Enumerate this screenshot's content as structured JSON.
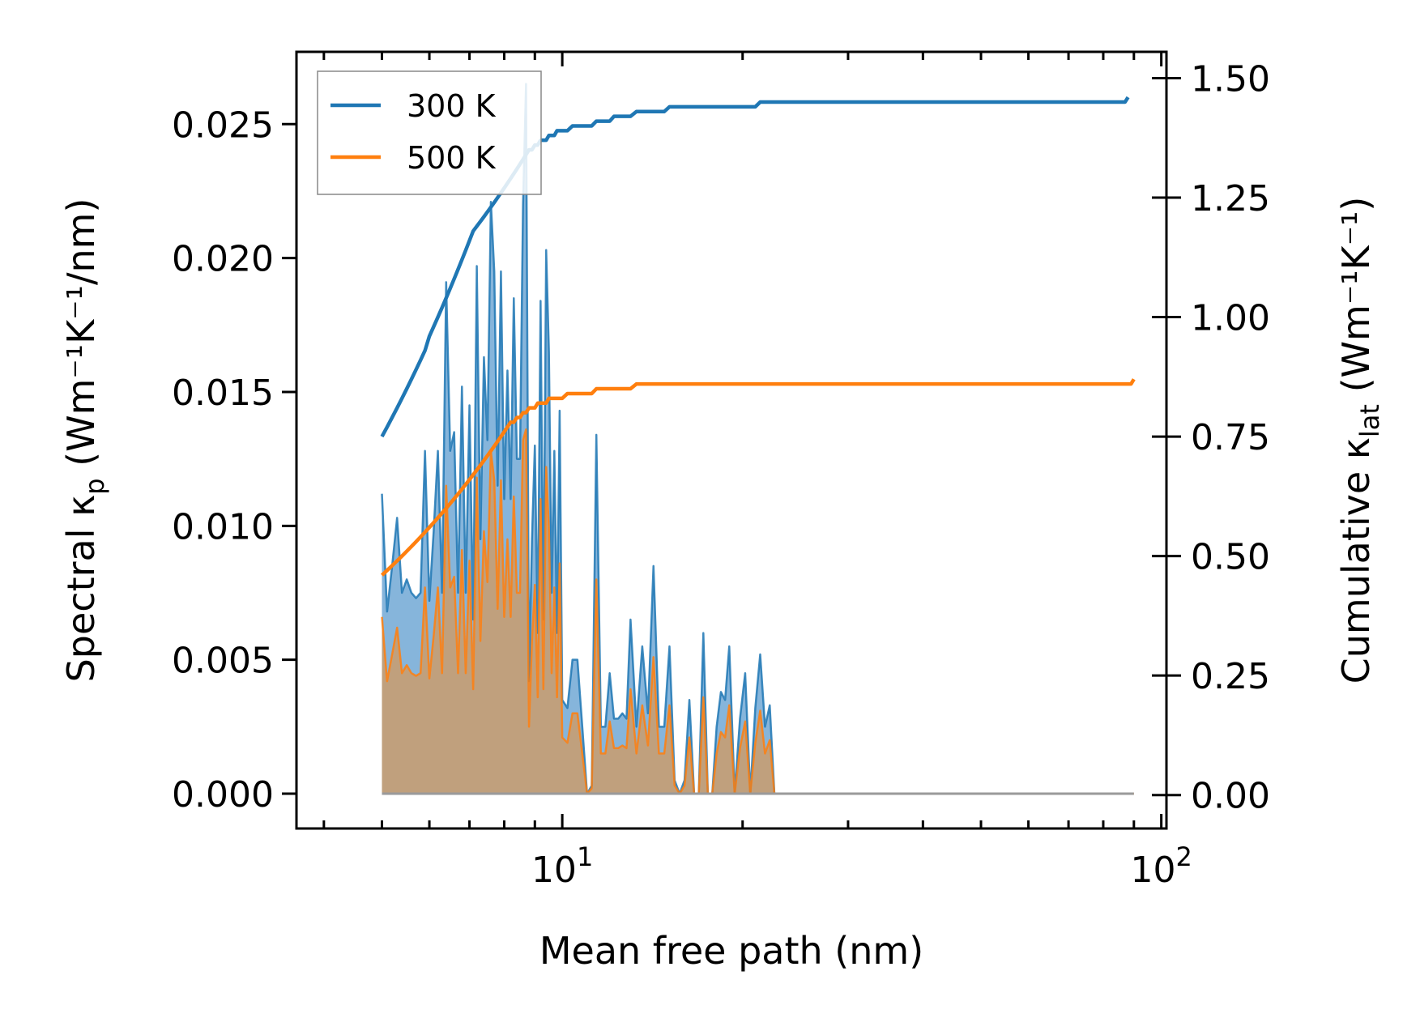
{
  "chart_data": {
    "type": "line+area",
    "title": "",
    "xlabel": "Mean free path (nm)",
    "ylabel_left": {
      "main": "Spectral κ",
      "sub": "p",
      "unit": "(Wm⁻¹K⁻¹/nm)"
    },
    "ylabel_right": {
      "main": "Cumulative κ",
      "sub": "lat",
      "unit": "(Wm⁻¹K⁻¹)"
    },
    "xscale": "log",
    "xlim": [
      3.6,
      102
    ],
    "ylim_left": [
      -0.0013,
      0.0277
    ],
    "ylim_right": [
      -0.07,
      1.555
    ],
    "xticks": [
      {
        "v": 10,
        "base": "10",
        "exp": "1"
      },
      {
        "v": 100,
        "base": "10",
        "exp": "2"
      }
    ],
    "yticks_left": [
      {
        "v": 0.0,
        "label": "0.000"
      },
      {
        "v": 0.005,
        "label": "0.005"
      },
      {
        "v": 0.01,
        "label": "0.010"
      },
      {
        "v": 0.015,
        "label": "0.015"
      },
      {
        "v": 0.02,
        "label": "0.020"
      },
      {
        "v": 0.025,
        "label": "0.025"
      }
    ],
    "yticks_right": [
      {
        "v": 0.0,
        "label": "0.00"
      },
      {
        "v": 0.25,
        "label": "0.25"
      },
      {
        "v": 0.5,
        "label": "0.50"
      },
      {
        "v": 0.75,
        "label": "0.75"
      },
      {
        "v": 1.0,
        "label": "1.00"
      },
      {
        "v": 1.25,
        "label": "1.25"
      },
      {
        "v": 1.5,
        "label": "1.50"
      }
    ],
    "legend": {
      "position": "top-left",
      "entries": [
        "300 K",
        "500 K"
      ]
    },
    "colors": {
      "300 K": "#1f77b4",
      "500 K": "#ff7f0e",
      "fill_300": "#7fb1d9",
      "fill_500": "#c69d72"
    },
    "x": [
      5.0,
      5.1,
      5.2,
      5.3,
      5.4,
      5.5,
      5.6,
      5.7,
      5.8,
      5.9,
      6.0,
      6.1,
      6.2,
      6.3,
      6.4,
      6.5,
      6.6,
      6.7,
      6.8,
      6.9,
      7.0,
      7.1,
      7.2,
      7.3,
      7.4,
      7.5,
      7.6,
      7.7,
      7.8,
      7.9,
      8.0,
      8.1,
      8.2,
      8.3,
      8.4,
      8.5,
      8.6,
      8.7,
      8.8,
      8.9,
      9.0,
      9.1,
      9.2,
      9.3,
      9.4,
      9.5,
      9.6,
      9.7,
      9.8,
      9.9,
      10.0,
      10.2,
      10.4,
      10.6,
      10.8,
      11.0,
      11.2,
      11.4,
      11.6,
      11.8,
      12.0,
      12.2,
      12.4,
      12.6,
      12.8,
      13.0,
      13.3,
      13.6,
      13.9,
      14.2,
      14.5,
      14.8,
      15.1,
      15.4,
      15.7,
      16.0,
      16.3,
      16.6,
      16.9,
      17.2,
      17.5,
      17.8,
      18.1,
      18.4,
      18.7,
      19.0,
      19.4,
      19.8,
      20.2,
      20.6,
      21.0,
      21.4,
      21.8,
      22.2,
      22.6,
      23.0,
      23.5,
      24.0,
      24.5,
      25.0,
      25.5,
      26.0,
      26.5,
      27.0,
      27.5,
      28.0,
      28.5,
      29.0,
      29.5,
      30.0,
      30.5,
      31.0,
      31.5,
      32.0,
      32.5,
      33.0,
      33.5,
      34.0,
      35.0,
      36.0,
      37.0,
      38.0,
      39.0,
      40.0,
      42.0,
      44.0,
      46.0,
      48.0,
      50.0,
      51.0,
      52.0,
      54.0,
      56.0,
      58.0,
      60.0,
      62.0,
      64.0,
      66.0,
      68.0,
      70.0,
      72.0,
      74.0,
      75.0,
      76.0,
      77.0,
      78.0,
      79.0,
      80.0,
      81.0,
      82.0,
      83.0,
      84.0,
      85.0,
      86.0,
      87.0,
      88.0,
      89.0,
      90.0
    ],
    "series": [
      {
        "name": "300 K",
        "spectral": [
          0.0112,
          0.0068,
          0.0085,
          0.0103,
          0.0075,
          0.008,
          0.0075,
          0.0073,
          0.0075,
          0.0128,
          0.0072,
          0.0098,
          0.0128,
          0.0075,
          0.0191,
          0.0128,
          0.0135,
          0.0075,
          0.0152,
          0.0075,
          0.0145,
          0.0065,
          0.0197,
          0.0095,
          0.0163,
          0.0132,
          0.0221,
          0.0195,
          0.0115,
          0.0195,
          0.011,
          0.0158,
          0.011,
          0.0185,
          0.0125,
          0.0125,
          0.022,
          0.0265,
          0.0042,
          0.0095,
          0.013,
          0.006,
          0.0184,
          0.0065,
          0.0203,
          0.0165,
          0.0075,
          0.0128,
          0.006,
          0.0143,
          0.0035,
          0.0032,
          0.005,
          0.005,
          0.0025,
          0.0,
          0.0003,
          0.0134,
          0.0025,
          0.0025,
          0.0045,
          0.0028,
          0.0028,
          0.003,
          0.0028,
          0.0065,
          0.0025,
          0.0055,
          0.003,
          0.0085,
          0.0025,
          0.0025,
          0.0055,
          0.0005,
          0.0,
          0.0005,
          0.0035,
          0.0,
          0.0,
          0.006,
          0.0,
          0.0,
          0.0025,
          0.0038,
          0.0035,
          0.0055,
          0.0,
          0.0028,
          0.0045,
          0.0,
          0.0032,
          0.0052,
          0.0025,
          0.0033,
          0.0,
          0.0,
          0.0,
          0.0,
          0.0,
          0.0,
          0.0,
          0.0,
          0.0,
          0.0,
          0.0,
          0.0,
          0.0,
          0.0,
          0.0,
          0.0,
          0.0,
          0.0,
          0.0,
          0.0,
          0.0,
          0.0,
          0.0,
          0.0,
          0.0,
          0.0,
          0.0,
          0.0,
          0.0,
          0.0,
          0.0,
          0.0,
          0.0,
          0.0,
          0.0,
          0.0,
          0.0,
          0.0,
          0.0,
          0.0,
          0.0,
          0.0,
          0.0,
          0.0,
          0.0,
          0.0,
          0.0,
          0.0,
          0.0,
          0.0,
          0.0,
          0.0,
          0.0,
          0.0,
          0.0,
          0.0,
          0.0,
          0.0,
          0.0,
          0.0,
          0.0,
          0.0
        ],
        "cumulative": [
          0.75,
          0.77,
          0.79,
          0.81,
          0.83,
          0.85,
          0.87,
          0.89,
          0.91,
          0.93,
          0.96,
          0.98,
          1.0,
          1.02,
          1.04,
          1.06,
          1.08,
          1.1,
          1.12,
          1.14,
          1.16,
          1.18,
          1.19,
          1.2,
          1.21,
          1.22,
          1.23,
          1.24,
          1.25,
          1.26,
          1.27,
          1.28,
          1.29,
          1.3,
          1.31,
          1.32,
          1.33,
          1.34,
          1.35,
          1.35,
          1.36,
          1.36,
          1.37,
          1.37,
          1.37,
          1.38,
          1.38,
          1.38,
          1.39,
          1.39,
          1.39,
          1.39,
          1.4,
          1.4,
          1.4,
          1.4,
          1.4,
          1.41,
          1.41,
          1.41,
          1.41,
          1.42,
          1.42,
          1.42,
          1.42,
          1.42,
          1.43,
          1.43,
          1.43,
          1.43,
          1.43,
          1.43,
          1.44,
          1.44,
          1.44,
          1.44,
          1.44,
          1.44,
          1.44,
          1.44,
          1.44,
          1.44,
          1.44,
          1.44,
          1.44,
          1.44,
          1.44,
          1.44,
          1.44,
          1.44,
          1.44,
          1.45,
          1.45,
          1.45,
          1.45,
          1.45,
          1.45,
          1.45,
          1.45,
          1.45,
          1.45,
          1.45,
          1.45,
          1.45,
          1.45,
          1.45,
          1.45,
          1.45,
          1.45,
          1.45,
          1.45,
          1.45,
          1.45,
          1.45,
          1.45,
          1.45,
          1.45,
          1.45,
          1.45,
          1.45,
          1.45,
          1.45,
          1.45,
          1.45,
          1.45,
          1.45,
          1.45,
          1.45,
          1.45,
          1.45,
          1.45,
          1.45,
          1.45,
          1.45,
          1.45,
          1.45,
          1.45,
          1.45,
          1.45,
          1.45,
          1.45,
          1.45,
          1.45,
          1.45,
          1.45,
          1.45,
          1.45,
          1.45,
          1.45,
          1.45,
          1.45,
          1.45,
          1.45,
          1.45,
          1.45,
          1.46
        ]
      },
      {
        "name": "500 K",
        "spectral": [
          0.0066,
          0.0042,
          0.0052,
          0.0062,
          0.0045,
          0.0048,
          0.0045,
          0.0044,
          0.0045,
          0.0077,
          0.0043,
          0.0059,
          0.0077,
          0.0045,
          0.0115,
          0.0077,
          0.0081,
          0.0045,
          0.0091,
          0.0045,
          0.0087,
          0.0039,
          0.0118,
          0.0057,
          0.0098,
          0.0079,
          0.0128,
          0.0117,
          0.0069,
          0.0117,
          0.0066,
          0.0095,
          0.0066,
          0.0111,
          0.0075,
          0.0075,
          0.0132,
          0.0136,
          0.0025,
          0.0057,
          0.0078,
          0.0036,
          0.011,
          0.0039,
          0.0122,
          0.0099,
          0.0045,
          0.0077,
          0.0036,
          0.0086,
          0.0021,
          0.0019,
          0.003,
          0.003,
          0.0015,
          0.0,
          0.0002,
          0.008,
          0.0015,
          0.0015,
          0.0027,
          0.0017,
          0.0017,
          0.0018,
          0.0017,
          0.0039,
          0.0015,
          0.0033,
          0.0018,
          0.0051,
          0.0015,
          0.0015,
          0.0033,
          0.0003,
          0.0,
          0.0003,
          0.0021,
          0.0,
          0.0,
          0.0036,
          0.0,
          0.0,
          0.0015,
          0.0023,
          0.0021,
          0.0033,
          0.0,
          0.0017,
          0.0027,
          0.0,
          0.0019,
          0.0031,
          0.0015,
          0.002,
          0.0,
          0.0,
          0.0,
          0.0,
          0.0,
          0.0,
          0.0,
          0.0,
          0.0,
          0.0,
          0.0,
          0.0,
          0.0,
          0.0,
          0.0,
          0.0,
          0.0,
          0.0,
          0.0,
          0.0,
          0.0,
          0.0,
          0.0,
          0.0,
          0.0,
          0.0,
          0.0,
          0.0,
          0.0,
          0.0,
          0.0,
          0.0,
          0.0,
          0.0,
          0.0,
          0.0,
          0.0,
          0.0,
          0.0,
          0.0,
          0.0,
          0.0,
          0.0,
          0.0,
          0.0,
          0.0,
          0.0,
          0.0,
          0.0,
          0.0,
          0.0,
          0.0,
          0.0,
          0.0,
          0.0,
          0.0,
          0.0,
          0.0,
          0.0,
          0.0,
          0.0,
          0.0,
          0.0,
          0.0
        ],
        "cumulative": [
          0.46,
          0.47,
          0.48,
          0.49,
          0.5,
          0.51,
          0.52,
          0.53,
          0.54,
          0.55,
          0.56,
          0.57,
          0.58,
          0.59,
          0.6,
          0.61,
          0.62,
          0.63,
          0.64,
          0.65,
          0.66,
          0.67,
          0.68,
          0.69,
          0.7,
          0.71,
          0.72,
          0.73,
          0.74,
          0.75,
          0.76,
          0.77,
          0.78,
          0.78,
          0.79,
          0.79,
          0.8,
          0.8,
          0.81,
          0.81,
          0.81,
          0.82,
          0.82,
          0.82,
          0.82,
          0.83,
          0.83,
          0.83,
          0.83,
          0.83,
          0.83,
          0.84,
          0.84,
          0.84,
          0.84,
          0.84,
          0.84,
          0.85,
          0.85,
          0.85,
          0.85,
          0.85,
          0.85,
          0.85,
          0.85,
          0.85,
          0.86,
          0.86,
          0.86,
          0.86,
          0.86,
          0.86,
          0.86,
          0.86,
          0.86,
          0.86,
          0.86,
          0.86,
          0.86,
          0.86,
          0.86,
          0.86,
          0.86,
          0.86,
          0.86,
          0.86,
          0.86,
          0.86,
          0.86,
          0.86,
          0.86,
          0.86,
          0.86,
          0.86,
          0.86,
          0.86,
          0.86,
          0.86,
          0.86,
          0.86,
          0.86,
          0.86,
          0.86,
          0.86,
          0.86,
          0.86,
          0.86,
          0.86,
          0.86,
          0.86,
          0.86,
          0.86,
          0.86,
          0.86,
          0.86,
          0.86,
          0.86,
          0.86,
          0.86,
          0.86,
          0.86,
          0.86,
          0.86,
          0.86,
          0.86,
          0.86,
          0.86,
          0.86,
          0.86,
          0.86,
          0.86,
          0.86,
          0.86,
          0.86,
          0.86,
          0.86,
          0.86,
          0.86,
          0.86,
          0.86,
          0.86,
          0.86,
          0.86,
          0.86,
          0.86,
          0.86,
          0.86,
          0.86,
          0.86,
          0.86,
          0.86,
          0.86,
          0.86,
          0.86,
          0.86,
          0.86,
          0.86,
          0.87
        ]
      }
    ]
  }
}
